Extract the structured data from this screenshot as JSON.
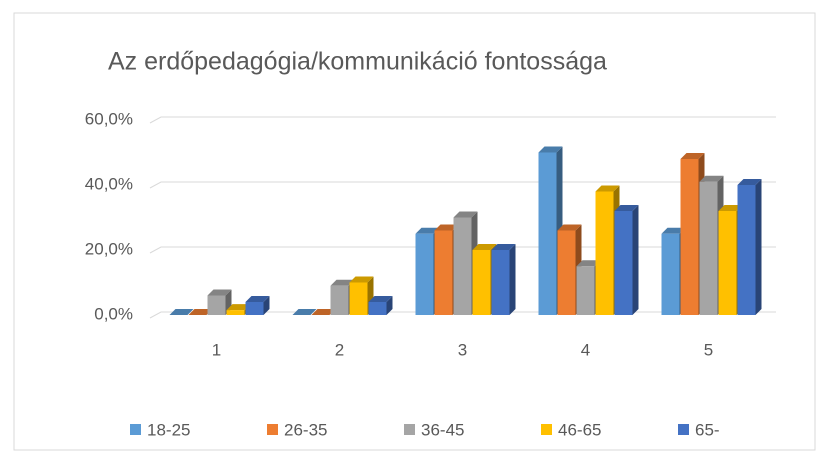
{
  "chart_data": {
    "type": "bar3d",
    "title": "Az erdőpedagógia/kommunikáció fontossága",
    "categories": [
      "1",
      "2",
      "3",
      "4",
      "5"
    ],
    "series": [
      {
        "name": "18-25",
        "color": "#5b9bd5",
        "values": [
          0,
          0,
          25,
          50,
          25
        ]
      },
      {
        "name": "26-35",
        "color": "#ed7d31",
        "values": [
          0,
          0,
          26,
          26,
          48
        ]
      },
      {
        "name": "36-45",
        "color": "#a5a5a5",
        "values": [
          6,
          9,
          30,
          15,
          41
        ]
      },
      {
        "name": "46-65",
        "color": "#ffc000",
        "values": [
          1.5,
          10,
          20,
          38,
          32
        ]
      },
      {
        "name": "65-",
        "color": "#4472c4",
        "values": [
          4,
          4,
          20,
          32,
          40
        ]
      }
    ],
    "ylim": [
      0,
      60
    ],
    "yticks": [
      {
        "value": 0,
        "label": "0,0%"
      },
      {
        "value": 20,
        "label": "20,0%"
      },
      {
        "value": 40,
        "label": "40,0%"
      },
      {
        "value": 60,
        "label": "60,0%"
      }
    ],
    "grid": true,
    "legend": "bottom"
  }
}
